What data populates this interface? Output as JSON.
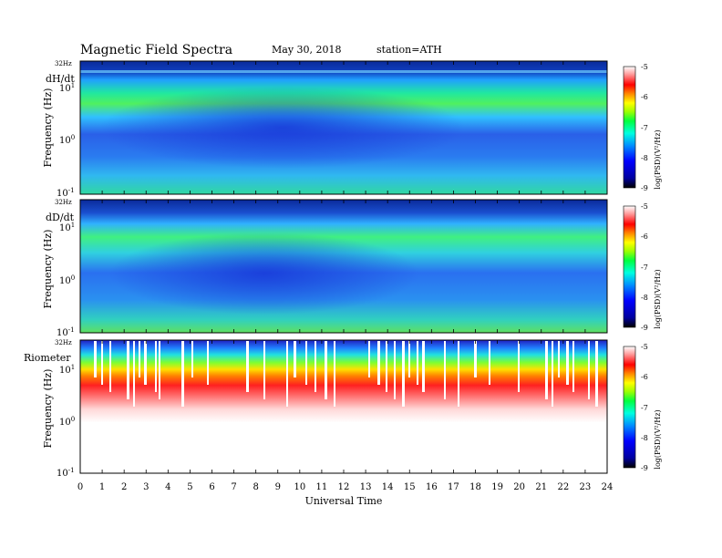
{
  "header": {
    "title": "Magnetic  Field  Spectra",
    "date": "May 30, 2018",
    "station": "station=ATH"
  },
  "chart_data": [
    {
      "type": "heatmap",
      "panel_label": "dH/dt",
      "ylabel": "Frequency  (Hz)",
      "top_label": "32Hz",
      "y_ticks": [
        {
          "base": "10",
          "exp": "1"
        },
        {
          "base": "10",
          "exp": "0"
        },
        {
          "base": "10",
          "exp": "-1"
        }
      ],
      "x_ticks": [
        "0",
        "1",
        "2",
        "3",
        "4",
        "5",
        "6",
        "7",
        "8",
        "9",
        "10",
        "11",
        "12",
        "13",
        "14",
        "15",
        "16",
        "17",
        "18",
        "19",
        "20",
        "21",
        "22",
        "23",
        "24"
      ],
      "xlim": [
        0,
        24
      ],
      "colorbar": {
        "label": "log(PSD)(V²/Hz)",
        "ticks": [
          "-5",
          "-6",
          "-7",
          "-8",
          "-9"
        ],
        "range": [
          -9,
          -5
        ]
      }
    },
    {
      "type": "heatmap",
      "panel_label": "dD/dt",
      "ylabel": "Frequency  (Hz)",
      "top_label": "32Hz",
      "y_ticks": [
        {
          "base": "10",
          "exp": "1"
        },
        {
          "base": "10",
          "exp": "0"
        },
        {
          "base": "10",
          "exp": "-1"
        }
      ],
      "x_ticks": [
        "0",
        "1",
        "2",
        "3",
        "4",
        "5",
        "6",
        "7",
        "8",
        "9",
        "10",
        "11",
        "12",
        "13",
        "14",
        "15",
        "16",
        "17",
        "18",
        "19",
        "20",
        "21",
        "22",
        "23",
        "24"
      ],
      "xlim": [
        0,
        24
      ],
      "colorbar": {
        "label": "log(PSD)(V²/Hz)",
        "ticks": [
          "-5",
          "-6",
          "-7",
          "-8",
          "-9"
        ],
        "range": [
          -9,
          -5
        ]
      }
    },
    {
      "type": "heatmap",
      "panel_label": "Riometer",
      "ylabel": "Frequency  (Hz)",
      "top_label": "32Hz",
      "y_ticks": [
        {
          "base": "10",
          "exp": "1"
        },
        {
          "base": "10",
          "exp": "0"
        },
        {
          "base": "10",
          "exp": "-1"
        }
      ],
      "x_ticks": [
        "0",
        "1",
        "2",
        "3",
        "4",
        "5",
        "6",
        "7",
        "8",
        "9",
        "10",
        "11",
        "12",
        "13",
        "14",
        "15",
        "16",
        "17",
        "18",
        "19",
        "20",
        "21",
        "22",
        "23",
        "24"
      ],
      "xlim": [
        0,
        24
      ],
      "xlabel": "Universal Time",
      "colorbar": {
        "label": "log(PSD)(V²/Hz)",
        "ticks": [
          "-5",
          "-6",
          "-7",
          "-8",
          "-9"
        ],
        "range": [
          -9,
          -5
        ]
      }
    }
  ],
  "colors": {
    "scale": [
      "#000080",
      "#0000ff",
      "#0080ff",
      "#00ffff",
      "#00ff80",
      "#80ff00",
      "#ffff00",
      "#ff8000",
      "#ff0000",
      "#ffffff"
    ]
  }
}
